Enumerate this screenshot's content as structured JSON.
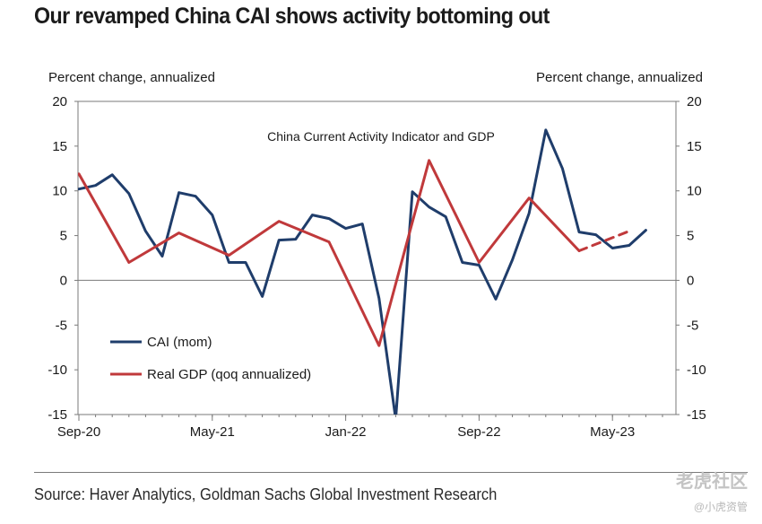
{
  "header": {
    "title": "Our revamped China CAI shows activity bottoming out"
  },
  "axes": {
    "left_label": "Percent change, annualized",
    "right_label": "Percent change, annualized"
  },
  "footer": {
    "source": "Source: Haver Analytics, Goldman Sachs Global Investment Research"
  },
  "watermark": {
    "brand": "老虎社区",
    "handle": "@小虎资管"
  },
  "colors": {
    "cai": "#1f3d6b",
    "gdp": "#c0393b",
    "axis": "#7a7a7a"
  },
  "chart_data": {
    "type": "line",
    "title": "China Current Activity Indicator and GDP",
    "xlabel": "",
    "ylabel": "Percent change, annualized",
    "ylim": [
      -15,
      20
    ],
    "yticks": [
      20,
      15,
      10,
      5,
      0,
      -5,
      -10,
      -15
    ],
    "x_start": "Sep-20",
    "x_end": "Aug-23",
    "x_tick_labels": [
      {
        "label": "Sep-20",
        "month_index": 0
      },
      {
        "label": "May-21",
        "month_index": 8
      },
      {
        "label": "Jan-22",
        "month_index": 16
      },
      {
        "label": "Sep-22",
        "month_index": 24
      },
      {
        "label": "May-23",
        "month_index": 32
      }
    ],
    "series": [
      {
        "name": "CAI (mom)",
        "style": "solid",
        "x": [
          0,
          1,
          2,
          3,
          4,
          5,
          6,
          7,
          8,
          9,
          10,
          11,
          12,
          13,
          14,
          15,
          16,
          17,
          18,
          19,
          20,
          21,
          22,
          23,
          24,
          25,
          26,
          27,
          28,
          29,
          30,
          31,
          32,
          33,
          34,
          35
        ],
        "values": [
          10.2,
          10.6,
          11.8,
          9.7,
          5.5,
          2.7,
          9.8,
          9.4,
          7.3,
          2.0,
          2.0,
          -1.8,
          4.5,
          4.6,
          7.3,
          6.9,
          5.8,
          6.3,
          -2.0,
          -15.5,
          9.9,
          8.2,
          7.1,
          2.0,
          1.7,
          -2.1,
          2.3,
          7.5,
          16.8,
          12.5,
          5.4,
          5.1,
          3.6,
          3.9,
          5.6,
          null
        ]
      },
      {
        "name": "Real GDP (qoq annualized)",
        "style": "solid",
        "x": [
          0,
          3,
          6,
          9,
          12,
          15,
          18,
          21,
          24,
          27,
          30
        ],
        "values": [
          11.9,
          2.0,
          5.3,
          2.8,
          6.6,
          4.3,
          -7.3,
          13.4,
          2.0,
          9.2,
          3.3
        ]
      },
      {
        "name": "Real GDP (qoq annualized) forecast",
        "style": "dashed",
        "x": [
          30,
          33
        ],
        "values": [
          3.3,
          5.5
        ]
      }
    ],
    "legend": [
      {
        "label": "CAI (mom)",
        "series": 0
      },
      {
        "label": "Real GDP (qoq annualized)",
        "series": 1
      }
    ],
    "legend_position": "bottom-left"
  }
}
